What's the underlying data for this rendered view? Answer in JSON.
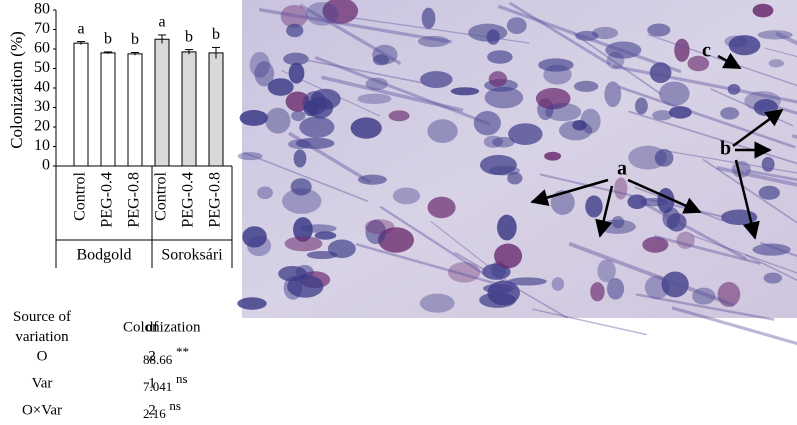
{
  "chart_data": {
    "type": "bar",
    "y_label": "Colonization (%)",
    "categories": [
      "Control",
      "PEG-0.4",
      "PEG-0.8"
    ],
    "series": [
      {
        "name": "Bodgold",
        "color": "#ffffff",
        "values": [
          63,
          58,
          57.5
        ],
        "errors": [
          0.8,
          0.5,
          0.7
        ],
        "letters": [
          "a",
          "b",
          "b"
        ]
      },
      {
        "name": "Soroksári",
        "color": "#d9d9d9",
        "values": [
          65,
          58.5,
          58
        ],
        "errors": [
          2.2,
          1.2,
          2.8
        ],
        "letters": [
          "a",
          "b",
          "b"
        ]
      }
    ],
    "ylim": [
      0,
      80
    ],
    "yticks": [
      0,
      10,
      20,
      30,
      40,
      50,
      60,
      70,
      80
    ]
  },
  "table": {
    "header": [
      "Source of variation",
      "df",
      "Colonization"
    ],
    "rows": [
      [
        "O",
        2,
        88.66,
        "**"
      ],
      [
        "Var",
        1,
        7.041,
        "ns"
      ],
      [
        "O×Var",
        2,
        2.16,
        "ns"
      ]
    ]
  },
  "micrograph": {
    "labels": [
      "a",
      "b",
      "c"
    ]
  }
}
